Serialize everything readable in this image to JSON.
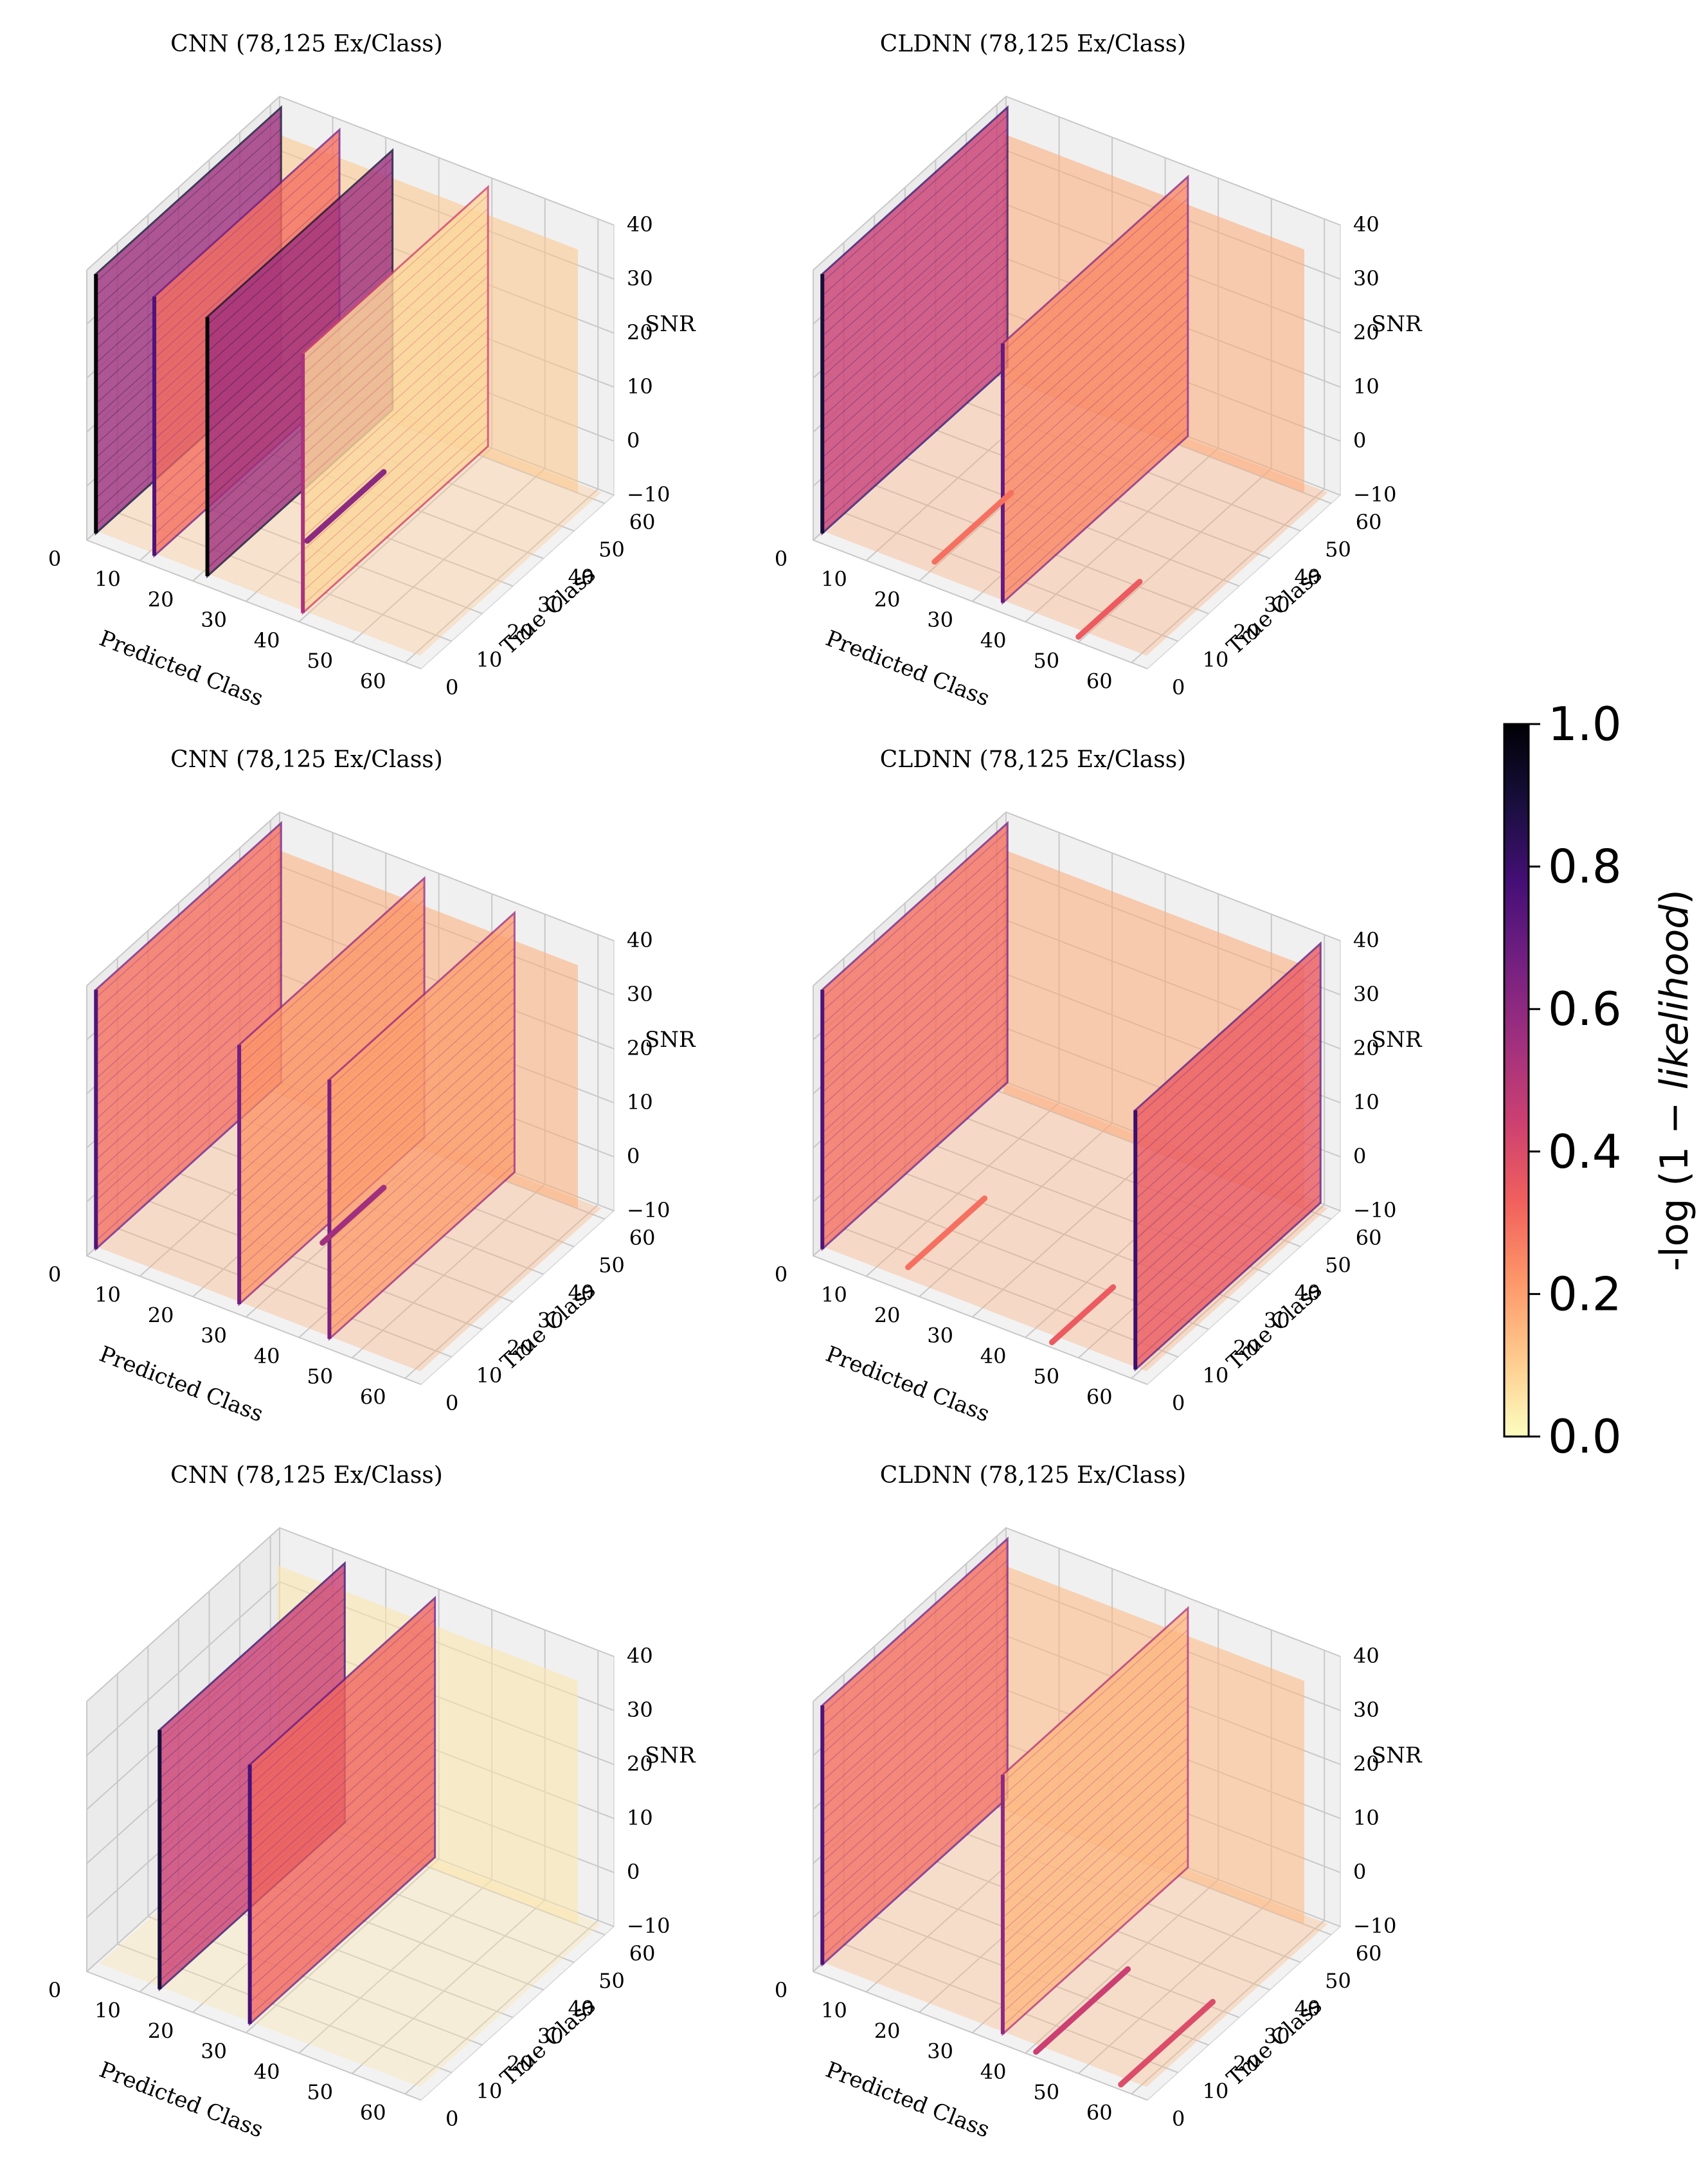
{
  "chart_data": [
    {
      "type": "scatter3d",
      "title": "CNN (78,125 Ex/Class)",
      "xlabel": "Predicted Class",
      "ylabel": "True Class",
      "zlabel": "SNR",
      "xticks": [
        "0",
        "10",
        "20",
        "30",
        "40",
        "50",
        "60"
      ],
      "yticks": [
        "0",
        "10",
        "20",
        "30",
        "40",
        "50",
        "60"
      ],
      "zticks": [
        "−10",
        "0",
        "10",
        "20",
        "30",
        "40"
      ],
      "xlim": [
        0,
        63
      ],
      "ylim": [
        0,
        63
      ],
      "zlim": [
        -10,
        40
      ],
      "walls": [
        {
          "predicted_class": 1,
          "intensity": 0.55
        },
        {
          "predicted_class": 12,
          "intensity": 0.3
        },
        {
          "predicted_class": 22,
          "intensity": 0.55
        },
        {
          "predicted_class": 40,
          "intensity": 0.08
        }
      ],
      "bands": [
        {
          "predicted_class": 30,
          "true_class_from": 20,
          "true_class_to": 45,
          "intensity": 0.6
        }
      ],
      "background_intensity": 0.12
    },
    {
      "type": "scatter3d",
      "title": "CLDNN (78,125 Ex/Class)",
      "xlabel": "Predicted Class",
      "ylabel": "True Class",
      "zlabel": "SNR",
      "xticks": [
        "0",
        "10",
        "20",
        "30",
        "40",
        "50",
        "60"
      ],
      "yticks": [
        "0",
        "10",
        "20",
        "30",
        "40",
        "50",
        "60"
      ],
      "zticks": [
        "−10",
        "0",
        "10",
        "20",
        "30",
        "40"
      ],
      "xlim": [
        0,
        63
      ],
      "ylim": [
        0,
        63
      ],
      "zlim": [
        -10,
        40
      ],
      "walls": [
        {
          "predicted_class": 1,
          "intensity": 0.45
        },
        {
          "predicted_class": 35,
          "intensity": 0.25
        }
      ],
      "bands": [
        {
          "predicted_class": 20,
          "true_class_from": 5,
          "true_class_to": 30,
          "intensity": 0.3
        },
        {
          "predicted_class": 50,
          "true_class_from": 0,
          "true_class_to": 20,
          "intensity": 0.35
        }
      ],
      "background_intensity": 0.18
    },
    {
      "type": "scatter3d",
      "title": "CNN (78,125 Ex/Class)",
      "xlabel": "Predicted Class",
      "ylabel": "True Class",
      "zlabel": "SNR",
      "xticks": [
        "0",
        "10",
        "20",
        "30",
        "40",
        "50",
        "60"
      ],
      "yticks": [
        "0",
        "10",
        "20",
        "30",
        "40",
        "50",
        "60"
      ],
      "zticks": [
        "−10",
        "0",
        "10",
        "20",
        "30",
        "40"
      ],
      "xlim": [
        0,
        63
      ],
      "ylim": [
        0,
        63
      ],
      "zlim": [
        -10,
        40
      ],
      "walls": [
        {
          "predicted_class": 1,
          "intensity": 0.3
        },
        {
          "predicted_class": 28,
          "intensity": 0.22
        },
        {
          "predicted_class": 45,
          "intensity": 0.2
        }
      ],
      "bands": [
        {
          "predicted_class": 30,
          "true_class_from": 25,
          "true_class_to": 45,
          "intensity": 0.55
        }
      ],
      "background_intensity": 0.17
    },
    {
      "type": "scatter3d",
      "title": "CLDNN (78,125 Ex/Class)",
      "xlabel": "Predicted Class",
      "ylabel": "True Class",
      "zlabel": "SNR",
      "xticks": [
        "0",
        "10",
        "20",
        "30",
        "40",
        "50",
        "60"
      ],
      "yticks": [
        "0",
        "10",
        "20",
        "30",
        "40",
        "50",
        "60"
      ],
      "zticks": [
        "−10",
        "0",
        "10",
        "20",
        "30",
        "40"
      ],
      "xlim": [
        0,
        63
      ],
      "ylim": [
        0,
        63
      ],
      "zlim": [
        -10,
        40
      ],
      "walls": [
        {
          "predicted_class": 1,
          "intensity": 0.3
        },
        {
          "predicted_class": 60,
          "intensity": 0.35
        }
      ],
      "bands": [
        {
          "predicted_class": 15,
          "true_class_from": 5,
          "true_class_to": 30,
          "intensity": 0.3
        },
        {
          "predicted_class": 45,
          "true_class_from": 0,
          "true_class_to": 20,
          "intensity": 0.35
        }
      ],
      "background_intensity": 0.18
    },
    {
      "type": "scatter3d",
      "title": "CNN (78,125 Ex/Class)",
      "xlabel": "Predicted Class",
      "ylabel": "True Class",
      "zlabel": "SNR",
      "xticks": [
        "0",
        "10",
        "20",
        "30",
        "40",
        "50",
        "60"
      ],
      "yticks": [
        "0",
        "10",
        "20",
        "30",
        "40",
        "50",
        "60"
      ],
      "zticks": [
        "−10",
        "0",
        "10",
        "20",
        "30",
        "40"
      ],
      "xlim": [
        0,
        63
      ],
      "ylim": [
        0,
        63
      ],
      "zlim": [
        -10,
        40
      ],
      "walls": [
        {
          "predicted_class": 13,
          "intensity": 0.45
        },
        {
          "predicted_class": 30,
          "intensity": 0.32
        }
      ],
      "bands": [],
      "background_intensity": 0.05
    },
    {
      "type": "scatter3d",
      "title": "CLDNN (78,125 Ex/Class)",
      "xlabel": "Predicted Class",
      "ylabel": "True Class",
      "zlabel": "SNR",
      "xticks": [
        "0",
        "10",
        "20",
        "30",
        "40",
        "50",
        "60"
      ],
      "yticks": [
        "0",
        "10",
        "20",
        "30",
        "40",
        "50",
        "60"
      ],
      "zticks": [
        "−10",
        "0",
        "10",
        "20",
        "30",
        "40"
      ],
      "xlim": [
        0,
        63
      ],
      "ylim": [
        0,
        63
      ],
      "zlim": [
        -10,
        40
      ],
      "walls": [
        {
          "predicted_class": 1,
          "intensity": 0.3
        },
        {
          "predicted_class": 35,
          "intensity": 0.15
        }
      ],
      "bands": [
        {
          "predicted_class": 42,
          "true_class_from": 0,
          "true_class_to": 30,
          "intensity": 0.45
        },
        {
          "predicted_class": 58,
          "true_class_from": 0,
          "true_class_to": 30,
          "intensity": 0.4
        }
      ],
      "background_intensity": 0.15
    }
  ],
  "colorbar": {
    "label_prefix": "-log",
    "label_paren_open": "(",
    "label_one": "1",
    "label_minus": "−",
    "label_italic": "likelihood",
    "label_paren_close": ")",
    "ticks": [
      "0.0",
      "0.2",
      "0.4",
      "0.6",
      "0.8",
      "1.0"
    ],
    "tick_values": [
      0.0,
      0.2,
      0.4,
      0.6,
      0.8,
      1.0
    ],
    "range": [
      0.0,
      1.0
    ],
    "colormap": "magma_r",
    "colormap_stops": [
      "#fcfdbf",
      "#feca8d",
      "#fd9668",
      "#f1605d",
      "#cd4071",
      "#9e2f7f",
      "#721f81",
      "#440f76",
      "#180f3d",
      "#000004"
    ]
  }
}
